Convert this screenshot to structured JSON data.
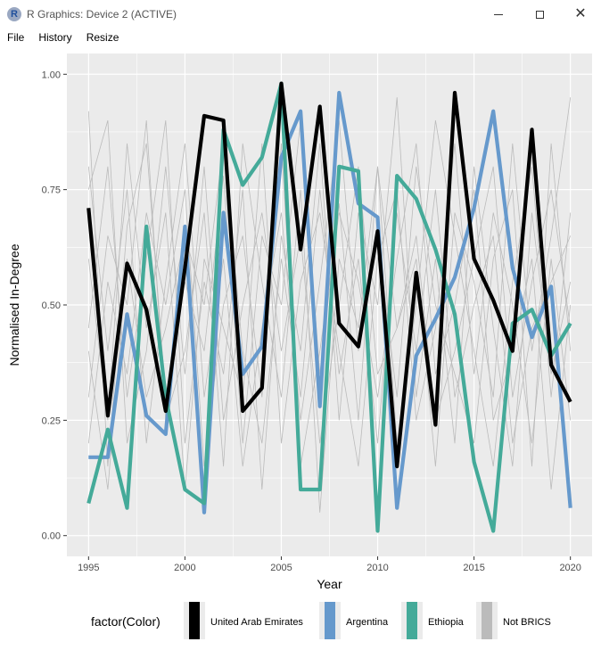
{
  "window": {
    "title": "R Graphics: Device 2 (ACTIVE)",
    "icon": "r-logo-icon",
    "controls": [
      "minimize-icon",
      "maximize-icon",
      "close-icon"
    ]
  },
  "menu": {
    "items": [
      "File",
      "History",
      "Resize"
    ]
  },
  "colors": {
    "panel_bg": "#ebebeb",
    "grid": "#ffffff",
    "uae": "#000000",
    "argentina": "#6699cc",
    "ethiopia": "#44aa99",
    "not_brics": "#bbbbbb"
  },
  "chart_data": {
    "type": "line",
    "xlabel": "Year",
    "ylabel": "Normalised In-Degree",
    "xlim": [
      1995,
      2020
    ],
    "ylim": [
      0,
      1
    ],
    "xticks": [
      1995,
      2000,
      2005,
      2010,
      2015,
      2020
    ],
    "yticks": [
      0.0,
      0.25,
      0.5,
      0.75,
      1.0
    ],
    "ytick_labels": [
      "0.00",
      "0.25",
      "0.50",
      "0.75",
      "1.00"
    ],
    "grid": true,
    "legend": {
      "title": "factor(Color)",
      "position": "bottom",
      "entries": [
        "United Arab Emirates",
        "Argentina",
        "Ethiopia",
        "Not BRICS"
      ]
    },
    "x": [
      1995,
      1996,
      1997,
      1998,
      1999,
      2000,
      2001,
      2002,
      2003,
      2004,
      2005,
      2006,
      2007,
      2008,
      2009,
      2010,
      2011,
      2012,
      2013,
      2014,
      2015,
      2016,
      2017,
      2018,
      2019,
      2020
    ],
    "series": [
      {
        "name": "United Arab Emirates",
        "color": "#000000",
        "values": [
          0.71,
          0.26,
          0.59,
          0.49,
          0.27,
          0.58,
          0.91,
          0.9,
          0.27,
          0.32,
          0.98,
          0.62,
          0.93,
          0.46,
          0.41,
          0.66,
          0.15,
          0.57,
          0.24,
          0.96,
          0.6,
          0.51,
          0.4,
          0.88,
          0.37,
          0.29
        ]
      },
      {
        "name": "Argentina",
        "color": "#6699cc",
        "values": [
          0.17,
          0.17,
          0.48,
          0.26,
          0.22,
          0.67,
          0.05,
          0.7,
          0.35,
          0.41,
          0.82,
          0.92,
          0.28,
          0.96,
          0.72,
          0.69,
          0.06,
          0.39,
          0.47,
          0.56,
          0.71,
          0.92,
          0.58,
          0.43,
          0.54,
          0.06
        ]
      },
      {
        "name": "Ethiopia",
        "color": "#44aa99",
        "values": [
          0.07,
          0.23,
          0.06,
          0.67,
          0.3,
          0.1,
          0.07,
          0.88,
          0.76,
          0.82,
          0.98,
          0.1,
          0.1,
          0.8,
          0.79,
          0.01,
          0.78,
          0.73,
          0.62,
          0.48,
          0.16,
          0.01,
          0.46,
          0.49,
          0.39,
          0.46
        ]
      }
    ],
    "background_series": [
      {
        "name": "Not BRICS",
        "values": [
          0.92,
          0.15,
          0.67,
          0.85,
          0.3,
          0.55,
          0.4,
          0.78,
          0.2,
          0.65,
          0.5,
          0.9,
          0.35,
          0.72,
          0.25,
          0.8,
          0.45,
          0.6,
          0.15,
          0.7,
          0.55,
          0.3,
          0.85,
          0.4,
          0.65,
          0.95
        ]
      },
      {
        "name": "Not BRICS",
        "values": [
          0.45,
          0.8,
          0.3,
          0.6,
          0.9,
          0.2,
          0.55,
          0.35,
          0.75,
          0.1,
          0.65,
          0.4,
          0.85,
          0.25,
          0.7,
          0.5,
          0.95,
          0.3,
          0.6,
          0.2,
          0.8,
          0.45,
          0.15,
          0.7,
          0.35,
          0.55
        ]
      },
      {
        "name": "Not BRICS",
        "values": [
          0.8,
          0.4,
          0.75,
          0.2,
          0.55,
          0.85,
          0.3,
          0.6,
          0.15,
          0.45,
          0.7,
          0.25,
          0.55,
          0.9,
          0.4,
          0.65,
          0.3,
          0.8,
          0.5,
          0.35,
          0.2,
          0.6,
          0.75,
          0.15,
          0.85,
          0.4
        ]
      },
      {
        "name": "Not BRICS",
        "values": [
          0.3,
          0.65,
          0.5,
          0.9,
          0.25,
          0.4,
          0.7,
          0.15,
          0.85,
          0.55,
          0.3,
          0.75,
          0.05,
          0.6,
          0.45,
          0.8,
          0.2,
          0.5,
          0.9,
          0.65,
          0.4,
          0.15,
          0.55,
          0.8,
          0.3,
          0.7
        ]
      },
      {
        "name": "Not BRICS",
        "values": [
          0.6,
          0.25,
          0.85,
          0.45,
          0.7,
          0.1,
          0.6,
          0.45,
          0.3,
          0.85,
          0.2,
          0.55,
          0.7,
          0.4,
          0.15,
          0.6,
          0.75,
          0.25,
          0.45,
          0.85,
          0.35,
          0.7,
          0.5,
          0.2,
          0.6,
          0.25
        ]
      },
      {
        "name": "Not BRICS",
        "values": [
          0.2,
          0.55,
          0.35,
          0.7,
          0.5,
          0.75,
          0.15,
          0.5,
          0.65,
          0.3,
          0.85,
          0.15,
          0.4,
          0.7,
          0.55,
          0.3,
          0.6,
          0.85,
          0.35,
          0.5,
          0.75,
          0.25,
          0.4,
          0.6,
          0.1,
          0.5
        ]
      },
      {
        "name": "Not BRICS",
        "values": [
          0.75,
          0.9,
          0.2,
          0.4,
          0.8,
          0.35,
          0.8,
          0.25,
          0.5,
          0.7,
          0.4,
          0.65,
          0.2,
          0.5,
          0.8,
          0.35,
          0.45,
          0.65,
          0.25,
          0.4,
          0.6,
          0.8,
          0.3,
          0.55,
          0.75,
          0.45
        ]
      },
      {
        "name": "Not BRICS",
        "values": [
          0.4,
          0.1,
          0.6,
          0.3,
          0.45,
          0.65,
          0.5,
          0.85,
          0.4,
          0.2,
          0.6,
          0.3,
          0.75,
          0.35,
          0.6,
          0.2,
          0.7,
          0.4,
          0.75,
          0.3,
          0.5,
          0.65,
          0.2,
          0.45,
          0.55,
          0.65
        ]
      }
    ]
  }
}
